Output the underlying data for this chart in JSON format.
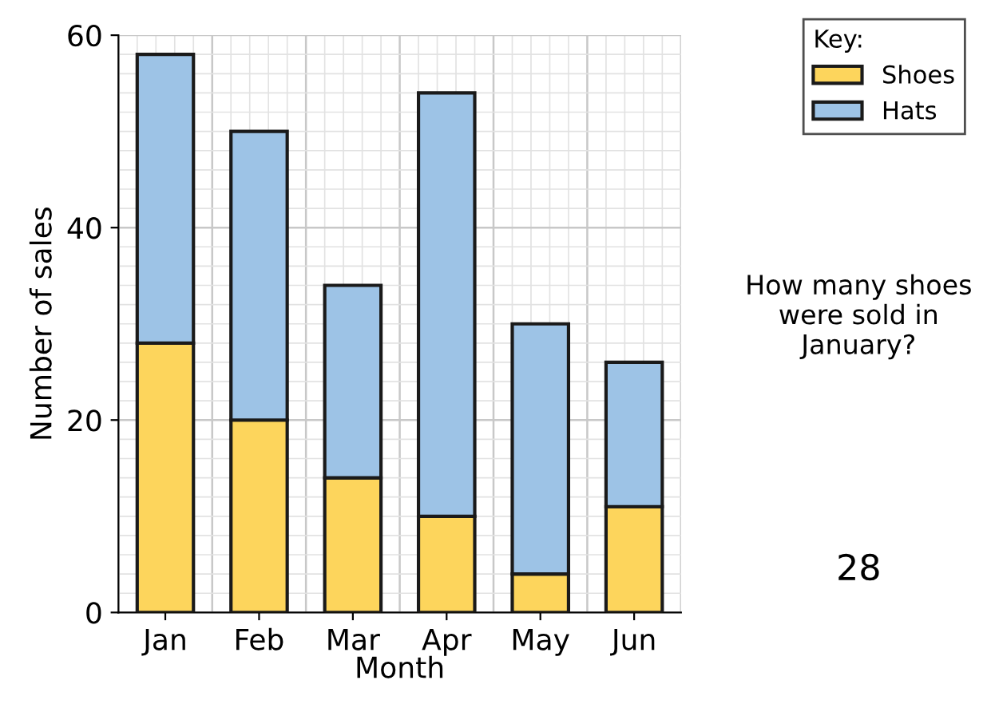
{
  "chart_data": {
    "type": "bar",
    "stacked": true,
    "xlabel": "Month",
    "ylabel": "Number of sales",
    "categories": [
      "Jan",
      "Feb",
      "Mar",
      "Apr",
      "May",
      "Jun"
    ],
    "series": [
      {
        "name": "Shoes",
        "color": "#fdd55c",
        "values": [
          28,
          20,
          14,
          10,
          4,
          11
        ]
      },
      {
        "name": "Hats",
        "color": "#9dc3e6",
        "values": [
          30,
          30,
          20,
          44,
          26,
          15
        ]
      }
    ],
    "ylim": [
      0,
      60
    ],
    "yticks": [
      0,
      20,
      40,
      60
    ],
    "grid": true,
    "legend": "top right",
    "legend_title": "Key:",
    "annotations": [
      "How many shoes were sold in January?",
      "28"
    ]
  }
}
